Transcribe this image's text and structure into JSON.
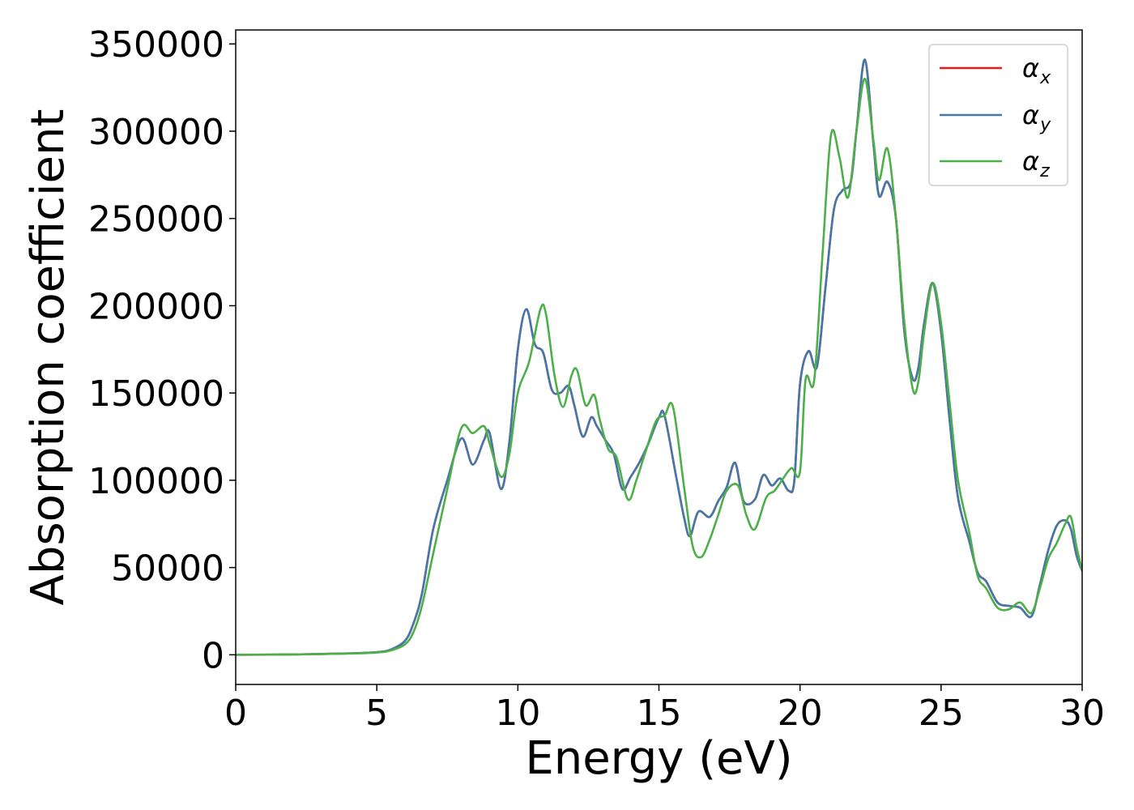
{
  "chart_data": {
    "type": "line",
    "xlabel": "Energy (eV)",
    "ylabel": "Absorption coefficient",
    "xlim": [
      0,
      30
    ],
    "ylim": [
      -17000,
      358000
    ],
    "xticks": [
      0,
      5,
      10,
      15,
      20,
      25,
      30
    ],
    "yticks": [
      0,
      50000,
      100000,
      150000,
      200000,
      250000,
      300000,
      350000
    ],
    "grid": false,
    "legend_position": "top-right",
    "series": [
      {
        "name": "αx",
        "legend_base": "α",
        "legend_sub": "x",
        "color": "#e41a1c",
        "x": [
          0,
          2,
          4,
          5,
          5.5,
          6,
          6.3,
          6.6,
          7,
          7.5,
          8,
          8.4,
          8.8,
          9,
          9.4,
          9.7,
          10,
          10.3,
          10.6,
          10.9,
          11.2,
          11.5,
          11.8,
          12,
          12.3,
          12.6,
          12.8,
          13.1,
          13.4,
          13.7,
          14,
          14.3,
          14.6,
          15,
          15.2,
          15.6,
          15.9,
          16.1,
          16.4,
          16.8,
          17.1,
          17.4,
          17.7,
          18,
          18.4,
          18.7,
          19,
          19.3,
          19.6,
          19.8,
          20,
          20.3,
          20.6,
          20.9,
          21.2,
          21.5,
          21.8,
          22,
          22.3,
          22.6,
          22.8,
          23.1,
          23.4,
          23.7,
          24,
          24.2,
          24.4,
          24.7,
          25,
          25.3,
          25.6,
          26,
          26.3,
          26.6,
          27,
          27.4,
          27.8,
          28.2,
          28.5,
          28.8,
          29.1,
          29.4,
          29.6,
          29.8,
          30
        ],
        "values": [
          0,
          200,
          800,
          1500,
          3000,
          8000,
          18000,
          35000,
          72000,
          100000,
          124000,
          109000,
          123000,
          127000,
          95000,
          122000,
          175000,
          198000,
          178000,
          173000,
          152000,
          150000,
          154000,
          143000,
          125000,
          136000,
          131000,
          123000,
          115000,
          95000,
          102000,
          110000,
          120000,
          136000,
          137000,
          103000,
          78000,
          68000,
          82000,
          79000,
          88000,
          96000,
          110000,
          88000,
          89000,
          103000,
          97000,
          101000,
          94000,
          100000,
          155000,
          174000,
          165000,
          210000,
          255000,
          266000,
          271000,
          300000,
          341000,
          293000,
          263000,
          271000,
          250000,
          185000,
          158000,
          165000,
          190000,
          213000,
          185000,
          135000,
          90000,
          65000,
          47000,
          42000,
          30000,
          28000,
          27000,
          22000,
          40000,
          60000,
          74000,
          77000,
          72000,
          57000,
          48000
        ]
      },
      {
        "name": "αy",
        "legend_base": "α",
        "legend_sub": "y",
        "color": "#4477aa",
        "x": [
          0,
          2,
          4,
          5,
          5.5,
          6,
          6.3,
          6.6,
          7,
          7.5,
          8,
          8.4,
          8.8,
          9,
          9.4,
          9.7,
          10,
          10.3,
          10.6,
          10.9,
          11.2,
          11.5,
          11.8,
          12,
          12.3,
          12.6,
          12.8,
          13.1,
          13.4,
          13.7,
          14,
          14.3,
          14.6,
          15,
          15.2,
          15.6,
          15.9,
          16.1,
          16.4,
          16.8,
          17.1,
          17.4,
          17.7,
          18,
          18.4,
          18.7,
          19,
          19.3,
          19.6,
          19.8,
          20,
          20.3,
          20.6,
          20.9,
          21.2,
          21.5,
          21.8,
          22,
          22.3,
          22.6,
          22.8,
          23.1,
          23.4,
          23.7,
          24,
          24.2,
          24.4,
          24.7,
          25,
          25.3,
          25.6,
          26,
          26.3,
          26.6,
          27,
          27.4,
          27.8,
          28.2,
          28.5,
          28.8,
          29.1,
          29.4,
          29.6,
          29.8,
          30
        ],
        "values": [
          0,
          200,
          800,
          1500,
          3000,
          8000,
          18000,
          35000,
          72000,
          100000,
          124000,
          109000,
          123000,
          127000,
          95000,
          122000,
          175000,
          198000,
          178000,
          173000,
          152000,
          150000,
          154000,
          143000,
          125000,
          136000,
          131000,
          123000,
          115000,
          95000,
          102000,
          110000,
          120000,
          136000,
          137000,
          103000,
          78000,
          68000,
          82000,
          79000,
          88000,
          96000,
          110000,
          88000,
          89000,
          103000,
          97000,
          101000,
          94000,
          100000,
          155000,
          174000,
          165000,
          210000,
          255000,
          266000,
          271000,
          300000,
          341000,
          293000,
          263000,
          271000,
          250000,
          185000,
          158000,
          165000,
          190000,
          213000,
          185000,
          135000,
          90000,
          65000,
          47000,
          42000,
          30000,
          28000,
          27000,
          22000,
          40000,
          60000,
          74000,
          77000,
          72000,
          57000,
          48000
        ]
      },
      {
        "name": "αz",
        "legend_base": "α",
        "legend_sub": "z",
        "color": "#4daf4a",
        "x": [
          0,
          2,
          4,
          5,
          5.5,
          6,
          6.3,
          6.6,
          7,
          7.5,
          8,
          8.4,
          8.8,
          9,
          9.4,
          9.7,
          10,
          10.4,
          10.8,
          11,
          11.3,
          11.6,
          11.9,
          12.1,
          12.4,
          12.7,
          12.9,
          13.2,
          13.5,
          13.9,
          14.2,
          14.5,
          14.9,
          15.2,
          15.5,
          15.9,
          16.2,
          16.5,
          16.8,
          17.1,
          17.4,
          17.8,
          18.1,
          18.4,
          18.8,
          19.1,
          19.4,
          19.7,
          20,
          20.2,
          20.5,
          20.8,
          21.1,
          21.4,
          21.7,
          22,
          22.3,
          22.6,
          22.8,
          23.1,
          23.4,
          23.7,
          24,
          24.2,
          24.4,
          24.7,
          25,
          25.3,
          25.6,
          26,
          26.3,
          26.6,
          27,
          27.4,
          27.8,
          28.2,
          28.5,
          28.8,
          29.1,
          29.4,
          29.6,
          29.8,
          30
        ],
        "values": [
          0,
          200,
          700,
          1300,
          2500,
          6000,
          13000,
          28000,
          58000,
          95000,
          130000,
          127000,
          131000,
          121000,
          102000,
          115000,
          150000,
          168000,
          198000,
          195000,
          160000,
          142000,
          160000,
          163000,
          143000,
          149000,
          135000,
          118000,
          113000,
          89000,
          100000,
          115000,
          134000,
          137000,
          142000,
          95000,
          62000,
          56000,
          66000,
          80000,
          94000,
          97000,
          80000,
          72000,
          90000,
          94000,
          101000,
          107000,
          105000,
          158000,
          157000,
          230000,
          298000,
          285000,
          262000,
          300000,
          330000,
          295000,
          272000,
          290000,
          250000,
          190000,
          152000,
          157000,
          185000,
          213000,
          190000,
          145000,
          100000,
          70000,
          45000,
          38000,
          27000,
          26000,
          30000,
          24000,
          38000,
          55000,
          64000,
          75000,
          79000,
          62000,
          48000
        ]
      }
    ]
  }
}
